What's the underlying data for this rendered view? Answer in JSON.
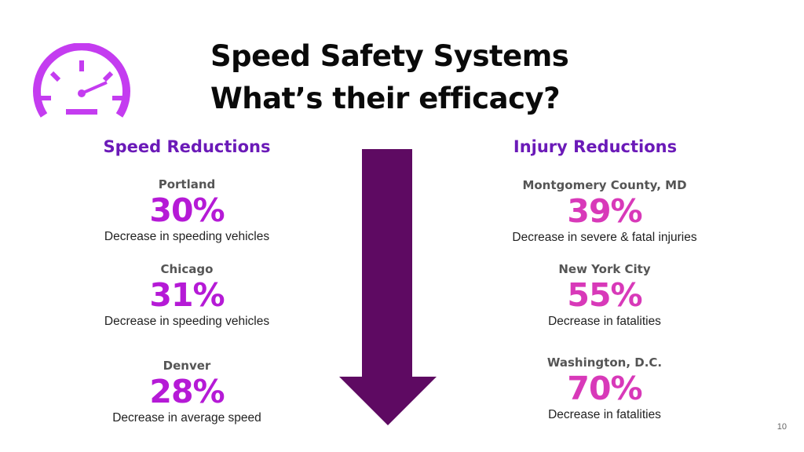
{
  "slide": {
    "title_line1": "Speed Safety Systems",
    "title_line2": "What’s their efficacy?",
    "page_number": "10"
  },
  "icon": {
    "name": "speedometer-icon",
    "color": "#c43cf0"
  },
  "arrow": {
    "color": "#5e0a62",
    "direction": "down"
  },
  "speed_reductions": {
    "heading": "Speed Reductions",
    "items": [
      {
        "city": "Portland",
        "value": "30%",
        "description": "Decrease in speeding vehicles"
      },
      {
        "city": "Chicago",
        "value": "31%",
        "description": "Decrease in speeding vehicles"
      },
      {
        "city": "Denver",
        "value": "28%",
        "description": "Decrease in average speed"
      }
    ]
  },
  "injury_reductions": {
    "heading": "Injury Reductions",
    "items": [
      {
        "city": "Montgomery County, MD",
        "value": "39%",
        "description": "Decrease in severe & fatal injuries"
      },
      {
        "city": "New York City",
        "value": "55%",
        "description": "Decrease in fatalities"
      },
      {
        "city": "Washington, D.C.",
        "value": "70%",
        "description": "Decrease in fatalities"
      }
    ]
  },
  "colors": {
    "heading": "#6b1ab8",
    "left_values": "#b51ad6",
    "right_values": "#d839b9"
  }
}
